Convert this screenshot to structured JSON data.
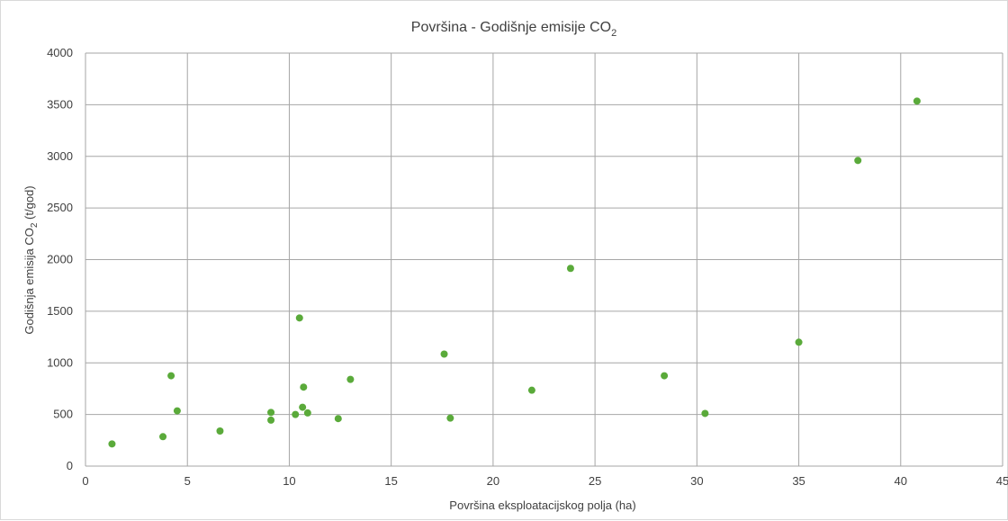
{
  "chart_data": {
    "type": "scatter",
    "title": {
      "text": "Površina - Godišnje emisije CO",
      "subscript": "2"
    },
    "xlabel": "Površina eksploatacijskog polja (ha)",
    "ylabel": {
      "before": "Godišnja emisija CO",
      "subscript": "2",
      "after": " (t/god)"
    },
    "xlim": [
      0,
      45
    ],
    "ylim": [
      0,
      4000
    ],
    "xticks": [
      0,
      5,
      10,
      15,
      20,
      25,
      30,
      35,
      40,
      45
    ],
    "yticks": [
      0,
      500,
      1000,
      1500,
      2000,
      2500,
      3000,
      3500,
      4000
    ],
    "grid": true,
    "marker_color": "#5aaa3a",
    "grid_color": "#a6a6a6",
    "points": [
      {
        "x": 1.3,
        "y": 215
      },
      {
        "x": 3.8,
        "y": 285
      },
      {
        "x": 4.2,
        "y": 875
      },
      {
        "x": 4.5,
        "y": 535
      },
      {
        "x": 6.6,
        "y": 340
      },
      {
        "x": 9.1,
        "y": 520
      },
      {
        "x": 9.1,
        "y": 445
      },
      {
        "x": 10.3,
        "y": 500
      },
      {
        "x": 10.5,
        "y": 1435
      },
      {
        "x": 10.65,
        "y": 570
      },
      {
        "x": 10.7,
        "y": 765
      },
      {
        "x": 10.9,
        "y": 515
      },
      {
        "x": 12.4,
        "y": 460
      },
      {
        "x": 13.0,
        "y": 840
      },
      {
        "x": 17.6,
        "y": 1085
      },
      {
        "x": 17.9,
        "y": 465
      },
      {
        "x": 21.9,
        "y": 735
      },
      {
        "x": 23.8,
        "y": 1915
      },
      {
        "x": 28.4,
        "y": 875
      },
      {
        "x": 30.4,
        "y": 510
      },
      {
        "x": 35.0,
        "y": 1200
      },
      {
        "x": 37.9,
        "y": 2960
      },
      {
        "x": 40.8,
        "y": 3535
      }
    ]
  }
}
